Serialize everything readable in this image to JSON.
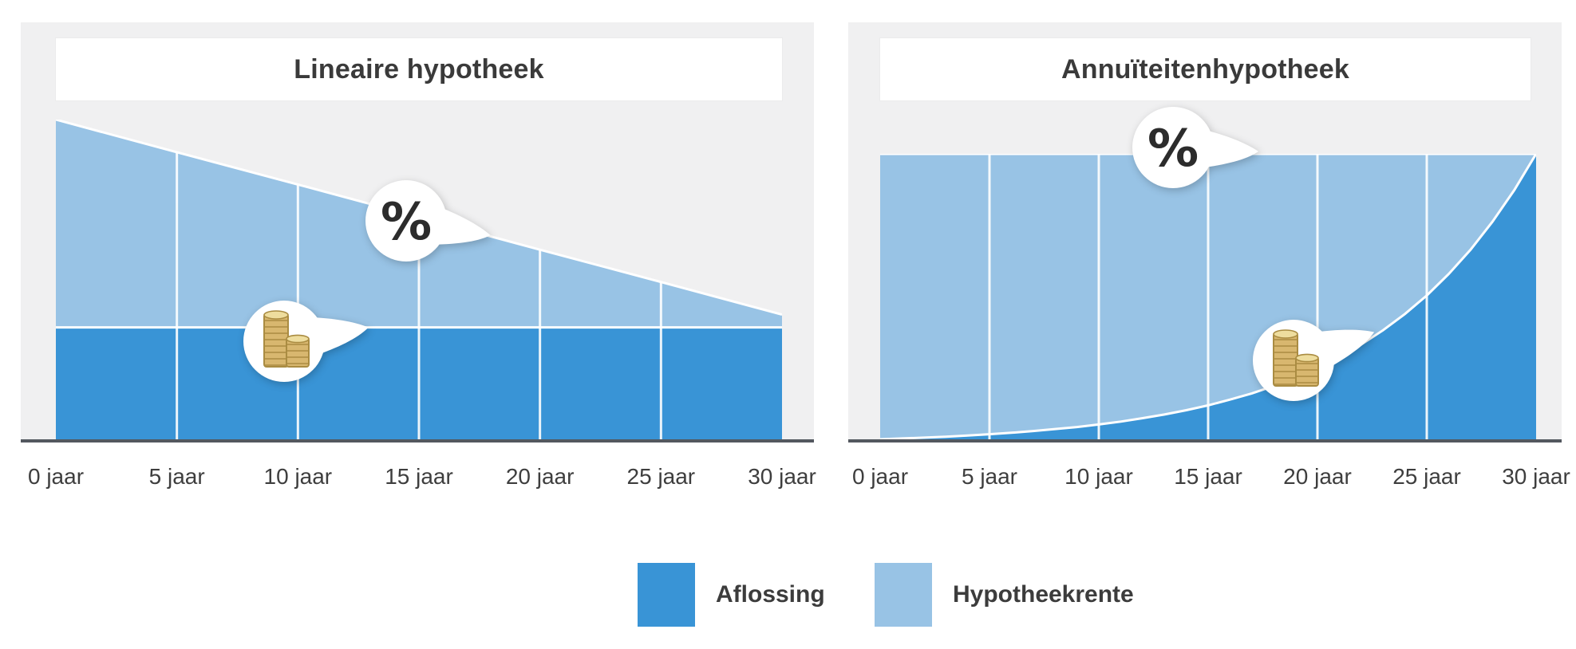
{
  "colors": {
    "aflossing": "#3994d6",
    "hypotheekrente": "#98c3e5",
    "panel_background": "#f0f0f1",
    "axis_line": "#53585f",
    "gridline": "#ffffff",
    "boundary_line": "#ffffff",
    "title_text": "#3a3a3a",
    "tick_label_text": "#3e3e3e",
    "bubble_background": "#ffffff",
    "percent_glyph": "#2c2c2c",
    "coin_gold": "#d8b76f"
  },
  "legend": {
    "position": "bottom-center",
    "items": [
      {
        "label": "Aflossing",
        "color": "#3994d6"
      },
      {
        "label": "Hypotheekrente",
        "color": "#98c3e5"
      }
    ]
  },
  "chart_data": [
    {
      "type": "area",
      "subtype": "stacked-area",
      "title": "Lineaire hypotheek",
      "xlabel": "",
      "ylabel": "",
      "x_unit": "jaar",
      "x": [
        0,
        5,
        10,
        15,
        20,
        25,
        30
      ],
      "x_ticks": [
        0,
        5,
        10,
        15,
        20,
        25,
        30
      ],
      "x_tick_labels": [
        "0 jaar",
        "5 jaar",
        "10 jaar",
        "15 jaar",
        "20 jaar",
        "25 jaar",
        "30 jaar"
      ],
      "ylim": [
        0,
        100
      ],
      "grid": "vertical-white-lines",
      "series": [
        {
          "name": "Aflossing",
          "color": "#3994d6",
          "stack_order": "bottom",
          "values": [
            35,
            35,
            35,
            35,
            35,
            35,
            35
          ]
        },
        {
          "name": "Hypotheekrente",
          "color": "#98c3e5",
          "stack_order": "top",
          "values": [
            65,
            54.8,
            44.7,
            34.5,
            24.3,
            14.2,
            4
          ]
        }
      ],
      "annotations": [
        {
          "id": "percent-bubble",
          "label": "%",
          "icon": "percent-icon",
          "attached_to": "hypotheekrente-upper-edge"
        },
        {
          "id": "coins-bubble",
          "label": "",
          "icon": "coin-stack-icon",
          "attached_to": "aflossing-upper-edge"
        }
      ]
    },
    {
      "type": "area",
      "subtype": "stacked-area",
      "title": "Annuïteitenhypotheek",
      "xlabel": "",
      "ylabel": "",
      "x_unit": "jaar",
      "x": [
        0,
        1,
        2,
        3,
        4,
        5,
        6,
        7,
        8,
        9,
        10,
        11,
        12,
        13,
        14,
        15,
        16,
        17,
        18,
        19,
        20,
        21,
        22,
        23,
        24,
        25,
        26,
        27,
        28,
        29,
        30
      ],
      "x_ticks": [
        0,
        5,
        10,
        15,
        20,
        25,
        30
      ],
      "x_tick_labels": [
        "0 jaar",
        "5 jaar",
        "10 jaar",
        "15 jaar",
        "20 jaar",
        "25 jaar",
        "30 jaar"
      ],
      "ylim": [
        0,
        100
      ],
      "grid": "vertical-white-lines",
      "series": [
        {
          "name": "Aflossing",
          "color": "#3994d6",
          "stack_order": "bottom",
          "values": [
            0,
            0.3,
            0.6,
            0.9,
            1.3,
            1.8,
            2.3,
            2.9,
            3.6,
            4.3,
            5.2,
            6.2,
            7.4,
            8.7,
            10.2,
            11.9,
            13.9,
            16.1,
            18.7,
            21.6,
            25,
            28.8,
            33.2,
            38.2,
            43.9,
            50.4,
            57.9,
            66.4,
            76.2,
            87.3,
            100
          ]
        },
        {
          "name": "Hypotheekrente",
          "color": "#98c3e5",
          "stack_order": "top",
          "values": [
            100,
            99.7,
            99.4,
            99.1,
            98.7,
            98.2,
            97.7,
            97.1,
            96.4,
            95.7,
            94.8,
            93.8,
            92.6,
            91.3,
            89.8,
            88.1,
            86.1,
            83.9,
            81.3,
            78.4,
            75,
            71.2,
            66.8,
            61.8,
            56.1,
            49.6,
            42.1,
            33.6,
            23.8,
            12.7,
            0
          ]
        }
      ],
      "annotations": [
        {
          "id": "percent-bubble",
          "label": "%",
          "icon": "percent-icon",
          "attached_to": "flat-total-top-edge"
        },
        {
          "id": "coins-bubble",
          "label": "",
          "icon": "coin-stack-icon",
          "attached_to": "aflossing-curve"
        }
      ]
    }
  ]
}
